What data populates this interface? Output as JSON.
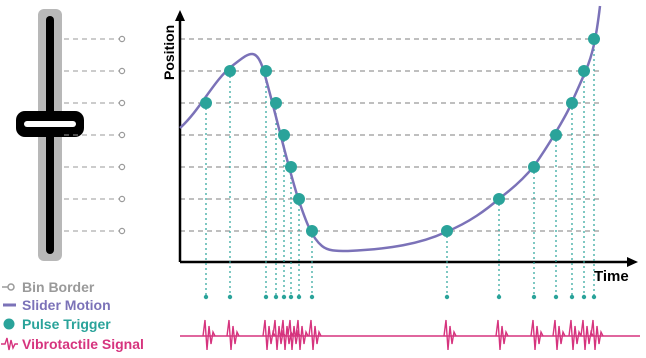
{
  "axes": {
    "y_label": "Position",
    "x_label": "Time"
  },
  "legend": [
    {
      "label": "Bin Border",
      "color": "#9a9a9a",
      "icon": "bin-border-icon"
    },
    {
      "label": "Slider Motion",
      "color": "#7b72b8",
      "icon": "slider-motion-icon"
    },
    {
      "label": "Pulse Trigger",
      "color": "#2aa39a",
      "icon": "pulse-trigger-icon"
    },
    {
      "label": "Vibrotactile Signal",
      "color": "#d6347e",
      "icon": "vibrotactile-signal-icon"
    }
  ],
  "colors": {
    "slider_motion": "#7b72b8",
    "pulse_trigger": "#2aa39a",
    "vibrotactile": "#d6347e",
    "bin_border": "#9a9a9a",
    "slider_track": "#b8b8b8",
    "slider_handle": "#000000"
  },
  "bin_border_count": 7
}
